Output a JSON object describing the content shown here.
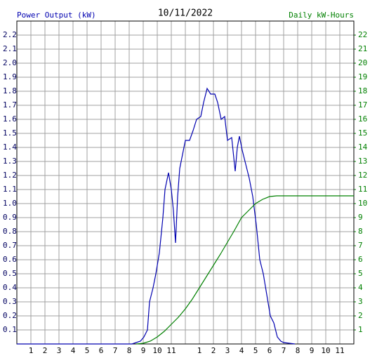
{
  "chart_data": {
    "type": "line",
    "title": "10/11/2022",
    "y_label": "Power Output (kW)",
    "y2_label": "Daily kW-Hours",
    "xlim": [
      0,
      24
    ],
    "xticks": [
      1,
      2,
      3,
      4,
      5,
      6,
      7,
      8,
      9,
      10,
      11,
      {
        "value": 12,
        "label": null
      },
      {
        "value": 13,
        "label": "1"
      },
      {
        "value": 14,
        "label": "2"
      },
      {
        "value": 15,
        "label": "3"
      },
      {
        "value": 16,
        "label": "4"
      },
      {
        "value": 17,
        "label": "5"
      },
      {
        "value": 18,
        "label": "6"
      },
      {
        "value": 19,
        "label": "7"
      },
      {
        "value": 20,
        "label": "8"
      },
      {
        "value": 21,
        "label": "9"
      },
      {
        "value": 22,
        "label": "10"
      },
      {
        "value": 23,
        "label": "11"
      }
    ],
    "ylim": [
      0,
      2.3
    ],
    "yticks": [
      0.1,
      0.2,
      0.3,
      0.4,
      0.5,
      0.6,
      0.7,
      0.8,
      0.9,
      {
        "value": 1,
        "label": "1.0"
      },
      1.1,
      1.2,
      1.3,
      1.4,
      1.5,
      1.6,
      1.7,
      1.8,
      1.9,
      {
        "value": 2,
        "label": "2.0"
      },
      2.1,
      2.2
    ],
    "y2lim": [
      0,
      23
    ],
    "y2ticks": [
      1,
      2,
      3,
      4,
      5,
      6,
      7,
      8,
      9,
      10,
      11,
      12,
      13,
      14,
      15,
      16,
      17,
      18,
      19,
      20,
      21,
      22
    ],
    "grid": true,
    "series": [
      {
        "name": "Power Output (kW)",
        "color": "#0000b0",
        "axis": "y",
        "x": [
          0,
          8.2,
          8.8,
          9.05,
          9.3,
          9.45,
          9.7,
          9.9,
          10.15,
          10.4,
          10.55,
          10.8,
          11.0,
          11.15,
          11.3,
          11.45,
          11.6,
          11.8,
          12.0,
          12.3,
          12.55,
          12.8,
          13.1,
          13.3,
          13.55,
          13.8,
          14.1,
          14.3,
          14.55,
          14.8,
          15.0,
          15.3,
          15.55,
          15.7,
          15.85,
          16.05,
          16.3,
          16.55,
          16.8,
          17.05,
          17.3,
          17.55,
          17.8,
          18.05,
          18.3,
          18.55,
          18.8,
          19.0,
          19.8
        ],
        "values": [
          0,
          0,
          0.02,
          0.05,
          0.1,
          0.3,
          0.4,
          0.5,
          0.65,
          0.9,
          1.1,
          1.22,
          1.1,
          0.95,
          0.72,
          1.05,
          1.25,
          1.35,
          1.45,
          1.45,
          1.52,
          1.6,
          1.62,
          1.72,
          1.82,
          1.78,
          1.78,
          1.72,
          1.6,
          1.62,
          1.45,
          1.47,
          1.23,
          1.4,
          1.48,
          1.38,
          1.28,
          1.18,
          1.05,
          0.85,
          0.6,
          0.5,
          0.35,
          0.2,
          0.15,
          0.05,
          0.02,
          0.01,
          0
        ]
      },
      {
        "name": "Daily kW-Hours",
        "color": "#008000",
        "axis": "y2",
        "x": [
          8.5,
          9,
          9.5,
          10,
          10.5,
          11,
          11.5,
          12,
          12.5,
          13,
          13.5,
          14,
          14.5,
          15,
          15.5,
          16,
          16.5,
          17,
          17.5,
          18,
          18.5,
          24
        ],
        "values": [
          0,
          0.05,
          0.2,
          0.5,
          0.9,
          1.4,
          1.9,
          2.5,
          3.2,
          4.0,
          4.8,
          5.6,
          6.4,
          7.25,
          8.1,
          9.0,
          9.5,
          10.0,
          10.3,
          10.5,
          10.55,
          10.55
        ]
      }
    ]
  }
}
